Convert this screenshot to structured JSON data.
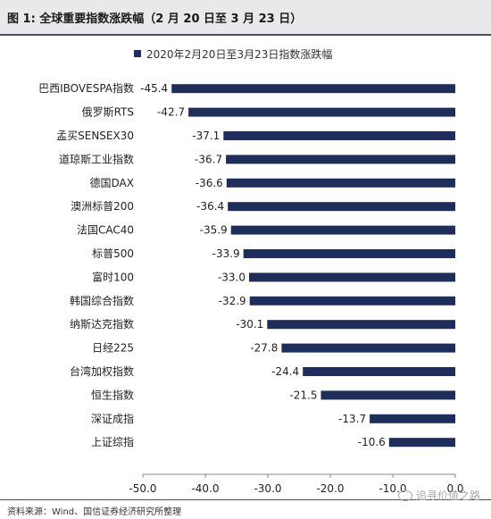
{
  "figure": {
    "title": "图 1: 全球重要指数涨跌幅（2 月 20 日至 3 月 23 日）",
    "source": "资料来源：Wind、国信证券经济研究所整理",
    "watermark": "追寻价值之路"
  },
  "colors": {
    "bar": "#1f2d5a",
    "header_bg": "#e9e9ec",
    "rule": "#4a4a66"
  },
  "chart_data": {
    "type": "bar",
    "orientation": "horizontal",
    "title": "",
    "xlabel": "",
    "ylabel": "",
    "legend": {
      "position": "top",
      "entries": [
        "2020年2月20日至3月23日指数涨跌幅"
      ]
    },
    "categories": [
      "巴西IBOVESPA指数",
      "俄罗斯RTS",
      "孟买SENSEX30",
      "道琼斯工业指数",
      "德国DAX",
      "澳洲标普200",
      "法国CAC40",
      "标普500",
      "富时100",
      "韩国综合指数",
      "纳斯达克指数",
      "日经225",
      "台湾加权指数",
      "恒生指数",
      "深证成指",
      "上证综指"
    ],
    "series": [
      {
        "name": "2020年2月20日至3月23日指数涨跌幅",
        "values": [
          -45.4,
          -42.7,
          -37.1,
          -36.7,
          -36.6,
          -36.4,
          -35.9,
          -33.9,
          -33.0,
          -32.9,
          -30.1,
          -27.8,
          -24.4,
          -21.5,
          -13.7,
          -10.6
        ]
      }
    ],
    "value_labels": [
      "-45.4",
      "-42.7",
      "-37.1",
      "-36.7",
      "-36.6",
      "-36.4",
      "-35.9",
      "-33.9",
      "-33.0",
      "-32.9",
      "-30.1",
      "-27.8",
      "-24.4",
      "-21.5",
      "-13.7",
      "-10.6"
    ],
    "xlim": [
      -50,
      0
    ],
    "xticks": [
      -50,
      -40,
      -30,
      -20,
      -10,
      0
    ],
    "xtick_labels": [
      "-50.0",
      "-40.0",
      "-30.0",
      "-20.0",
      "-10.0",
      "0.0"
    ],
    "grid": false
  }
}
